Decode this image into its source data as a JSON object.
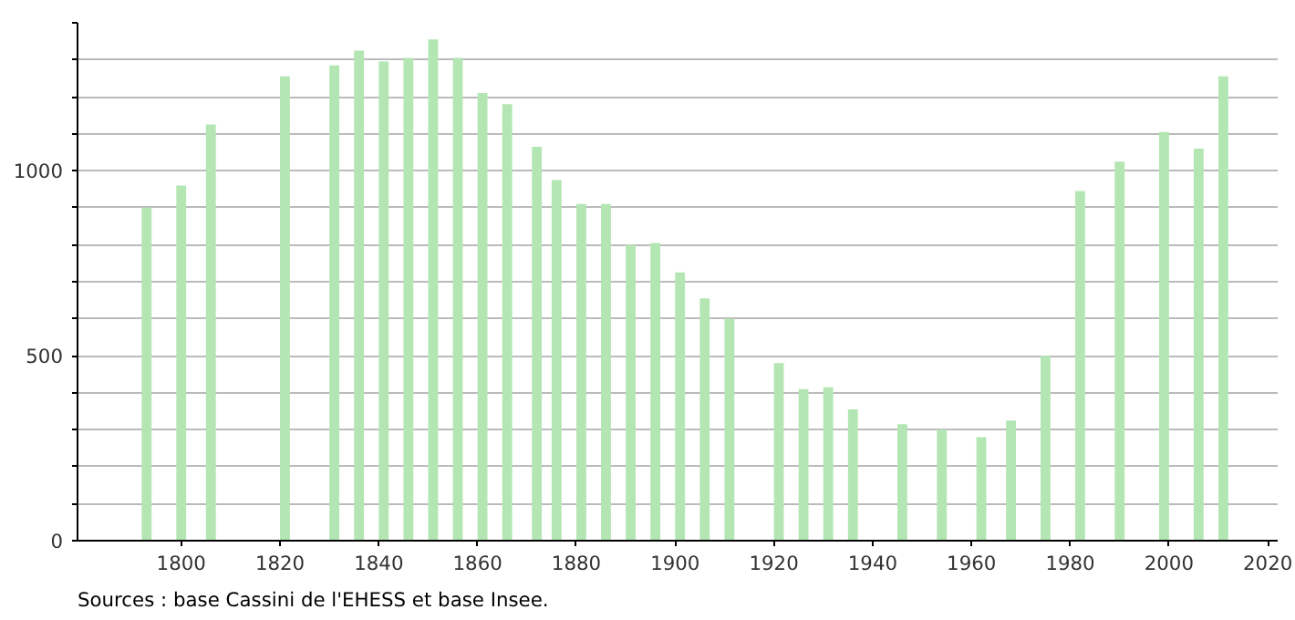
{
  "chart_data": {
    "type": "bar",
    "x": [
      1793,
      1800,
      1806,
      1821,
      1831,
      1836,
      1841,
      1846,
      1851,
      1856,
      1861,
      1866,
      1872,
      1876,
      1881,
      1886,
      1891,
      1896,
      1901,
      1906,
      1911,
      1921,
      1926,
      1931,
      1936,
      1946,
      1954,
      1962,
      1968,
      1975,
      1982,
      1990,
      1999,
      2006,
      2011
    ],
    "values": [
      900,
      960,
      1125,
      1255,
      1285,
      1325,
      1295,
      1305,
      1355,
      1305,
      1210,
      1180,
      1065,
      975,
      910,
      910,
      800,
      805,
      725,
      655,
      600,
      480,
      410,
      415,
      355,
      315,
      300,
      280,
      325,
      500,
      945,
      1025,
      1105,
      1060,
      1255
    ],
    "color": "#b3e6b3",
    "xlim": [
      1779,
      2022
    ],
    "xticks": [
      1800,
      1820,
      1840,
      1860,
      1880,
      1900,
      1920,
      1940,
      1960,
      1980,
      2000,
      2020
    ],
    "ylim": [
      0,
      1400
    ],
    "yticks": [
      0,
      {
        "value": 100,
        "label": null
      },
      {
        "value": 200,
        "label": null
      },
      {
        "value": 300,
        "label": null
      },
      {
        "value": 400,
        "label": null
      },
      500,
      {
        "value": 600,
        "label": null
      },
      {
        "value": 700,
        "label": null
      },
      {
        "value": 800,
        "label": null
      },
      {
        "value": 900,
        "label": null
      },
      1000,
      {
        "value": 1100,
        "label": null
      },
      {
        "value": 1200,
        "label": null
      },
      {
        "value": 1300,
        "label": null
      },
      {
        "value": 1400,
        "label": null
      }
    ],
    "grid": "y",
    "annotations": [
      "Sources : base Cassini de l'EHESS et base Insee."
    ]
  }
}
